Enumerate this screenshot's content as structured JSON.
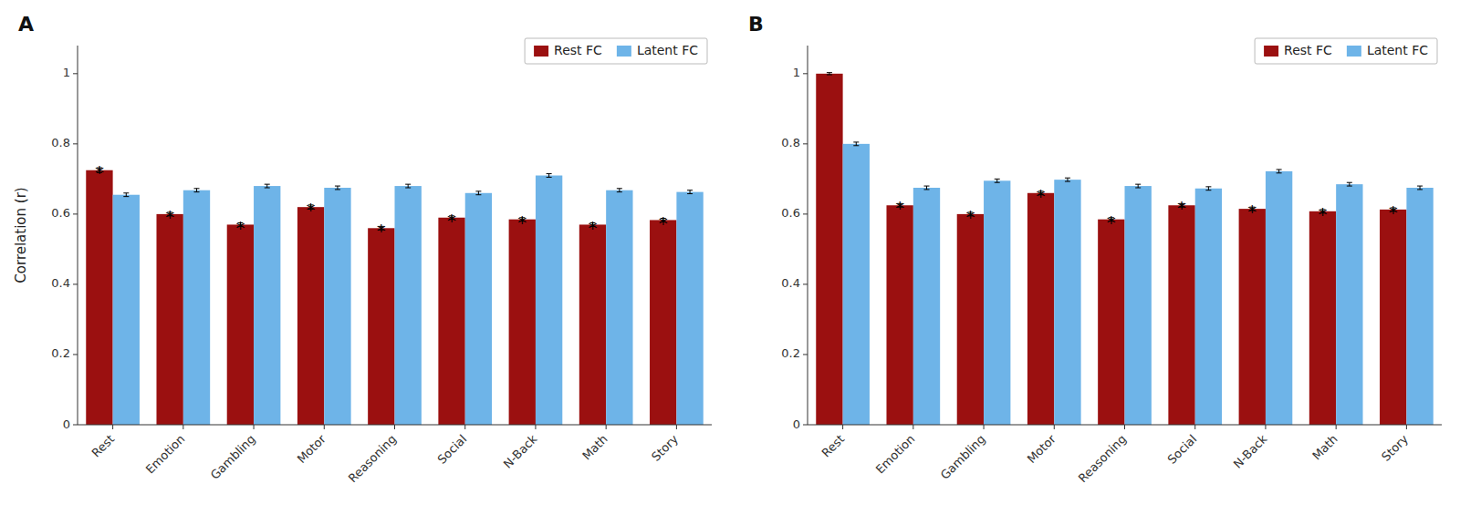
{
  "chart_data": [
    {
      "type": "bar",
      "title": "A",
      "ylabel": "Correlation (r)",
      "categories": [
        "Rest",
        "Emotion",
        "Gambling",
        "Motor",
        "Reasoning",
        "Social",
        "N-Back",
        "Math",
        "Story"
      ],
      "series": [
        {
          "name": "Rest FC",
          "color": "#9B1010",
          "values": [
            0.725,
            0.6,
            0.57,
            0.62,
            0.56,
            0.59,
            0.585,
            0.57,
            0.583
          ],
          "errors": [
            0.007,
            0.005,
            0.005,
            0.006,
            0.005,
            0.005,
            0.005,
            0.005,
            0.005
          ]
        },
        {
          "name": "Latent FC",
          "color": "#6EB4E8",
          "values": [
            0.655,
            0.668,
            0.68,
            0.675,
            0.68,
            0.66,
            0.71,
            0.668,
            0.663
          ],
          "errors": [
            0.005,
            0.005,
            0.005,
            0.005,
            0.005,
            0.005,
            0.005,
            0.005,
            0.005
          ]
        }
      ],
      "annotations": [
        {
          "text": "*",
          "series": 0,
          "category": "Rest"
        },
        {
          "text": "*",
          "series": 0,
          "category": "Emotion"
        },
        {
          "text": "*",
          "series": 0,
          "category": "Gambling"
        },
        {
          "text": "*",
          "series": 0,
          "category": "Motor"
        },
        {
          "text": "*",
          "series": 0,
          "category": "Reasoning"
        },
        {
          "text": "*",
          "series": 0,
          "category": "Social"
        },
        {
          "text": "*",
          "series": 0,
          "category": "N-Back"
        },
        {
          "text": "*",
          "series": 0,
          "category": "Math"
        },
        {
          "text": "*",
          "series": 0,
          "category": "Story"
        }
      ],
      "ylim": [
        0,
        1.08
      ],
      "yticks": [
        0,
        0.2,
        0.4,
        0.6,
        0.8,
        1
      ],
      "grid": false,
      "legend": "upper right"
    },
    {
      "type": "bar",
      "title": "B",
      "categories": [
        "Rest",
        "Emotion",
        "Gambling",
        "Motor",
        "Reasoning",
        "Social",
        "N-Back",
        "Math",
        "Story"
      ],
      "series": [
        {
          "name": "Rest FC",
          "color": "#9B1010",
          "values": [
            1.0,
            0.625,
            0.6,
            0.66,
            0.585,
            0.625,
            0.615,
            0.608,
            0.613
          ],
          "errors": [
            0.003,
            0.005,
            0.005,
            0.005,
            0.005,
            0.005,
            0.005,
            0.005,
            0.005
          ]
        },
        {
          "name": "Latent FC",
          "color": "#6EB4E8",
          "values": [
            0.8,
            0.675,
            0.695,
            0.698,
            0.68,
            0.673,
            0.722,
            0.685,
            0.675
          ],
          "errors": [
            0.005,
            0.005,
            0.005,
            0.005,
            0.005,
            0.005,
            0.005,
            0.005,
            0.005
          ]
        }
      ],
      "annotations": [
        {
          "text": "*",
          "series": 0,
          "category": "Emotion"
        },
        {
          "text": "*",
          "series": 0,
          "category": "Gambling"
        },
        {
          "text": "*",
          "series": 0,
          "category": "Motor"
        },
        {
          "text": "*",
          "series": 0,
          "category": "Reasoning"
        },
        {
          "text": "*",
          "series": 0,
          "category": "Social"
        },
        {
          "text": "*",
          "series": 0,
          "category": "N-Back"
        },
        {
          "text": "*",
          "series": 0,
          "category": "Math"
        },
        {
          "text": "*",
          "series": 0,
          "category": "Story"
        }
      ],
      "ylim": [
        0,
        1.08
      ],
      "yticks": [
        0,
        0.2,
        0.4,
        0.6,
        0.8,
        1
      ],
      "grid": false,
      "legend": "upper right"
    }
  ]
}
